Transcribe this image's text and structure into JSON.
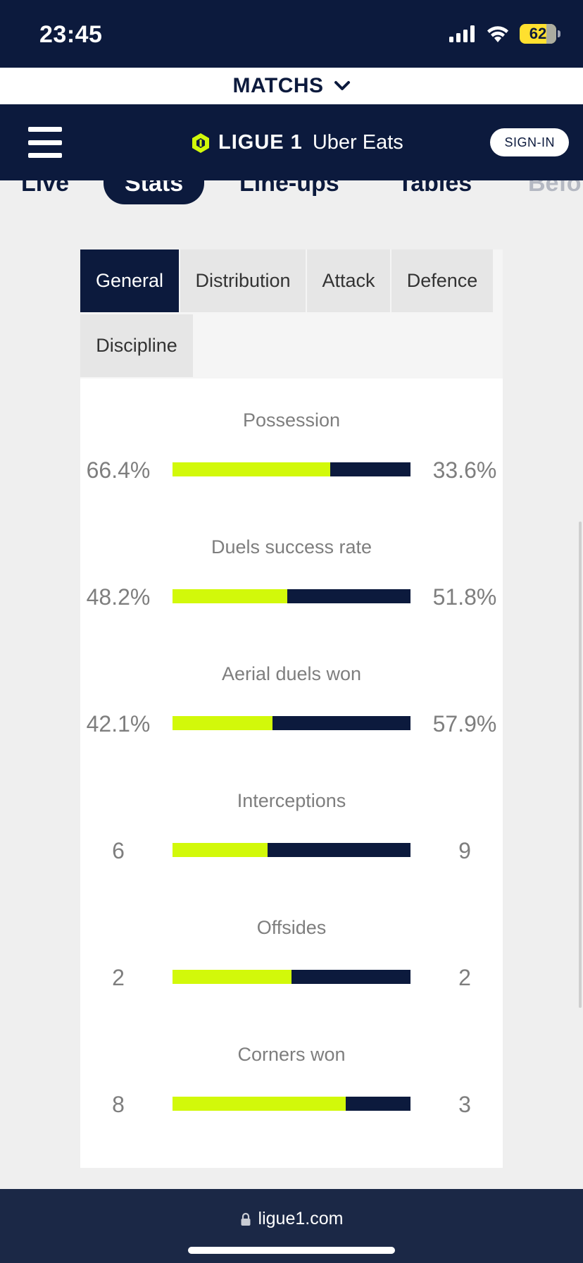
{
  "status_bar": {
    "time": "23:45",
    "battery": "62"
  },
  "matchs_bar": {
    "label": "MATCHS"
  },
  "header": {
    "logo_text": "LIGUE 1",
    "logo_sub": "Uber Eats",
    "signin_label": "SIGN-IN"
  },
  "section_nav": {
    "items": [
      "Live",
      "Stats",
      "Line-ups",
      "Tables",
      "Befo"
    ],
    "active": "Stats"
  },
  "tabs": [
    "General",
    "Distribution",
    "Attack",
    "Defence",
    "Discipline"
  ],
  "active_tab": "General",
  "stats": [
    {
      "title": "Possession",
      "left": "66.4%",
      "right": "33.6%",
      "left_share": 0.664
    },
    {
      "title": "Duels success rate",
      "left": "48.2%",
      "right": "51.8%",
      "left_share": 0.482
    },
    {
      "title": "Aerial duels won",
      "left": "42.1%",
      "right": "57.9%",
      "left_share": 0.421
    },
    {
      "title": "Interceptions",
      "left": "6",
      "right": "9",
      "left_share": 0.4
    },
    {
      "title": "Offsides",
      "left": "2",
      "right": "2",
      "left_share": 0.5
    },
    {
      "title": "Corners won",
      "left": "8",
      "right": "3",
      "left_share": 0.727
    }
  ],
  "url_bar": {
    "url": "ligue1.com"
  },
  "colors": {
    "navy": "#0c1a3d",
    "lime": "#d2f90a",
    "gray_text": "#7e7e7e"
  }
}
